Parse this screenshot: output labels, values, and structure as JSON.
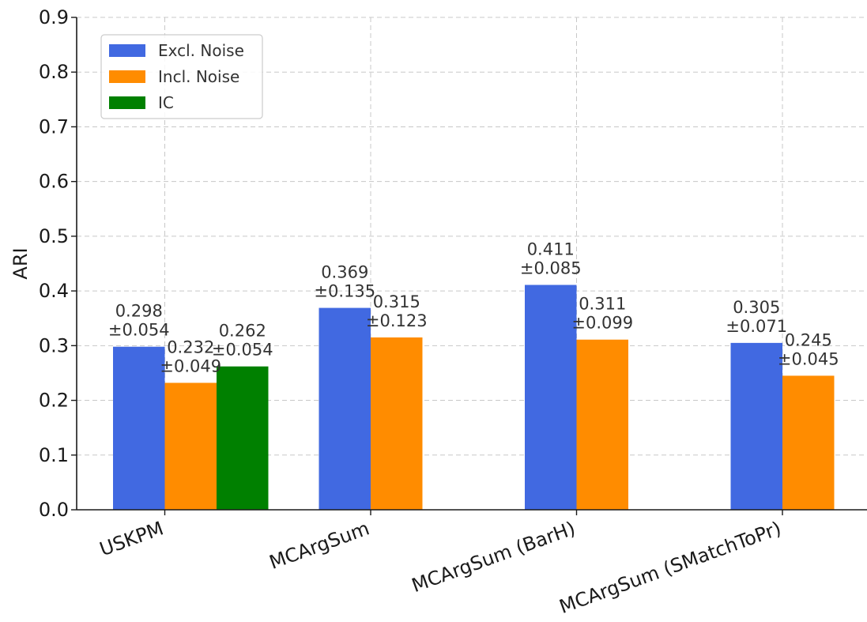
{
  "chart_data": {
    "type": "bar",
    "ylabel": "ARI",
    "xlabel": "",
    "ylim": [
      0,
      0.9
    ],
    "yticks": [
      "0.0",
      "0.1",
      "0.2",
      "0.3",
      "0.4",
      "0.5",
      "0.6",
      "0.7",
      "0.8",
      "0.9"
    ],
    "categories": [
      "USKPM",
      "MCArgSum",
      "MCArgSum (BarH)",
      "MCArgSum (SMatchToPr)"
    ],
    "grid": true,
    "legend_position": "top-left",
    "series": [
      {
        "name": "Excl. Noise",
        "color": "#4169e1",
        "values": [
          0.298,
          0.369,
          0.411,
          0.305
        ],
        "labels": [
          [
            "0.298",
            "±0.054"
          ],
          [
            "0.369",
            "±0.135"
          ],
          [
            "0.411",
            "±0.085"
          ],
          [
            "0.305",
            "±0.071"
          ]
        ]
      },
      {
        "name": "Incl. Noise",
        "color": "#ff8c00",
        "values": [
          0.232,
          0.315,
          0.311,
          0.245
        ],
        "labels": [
          [
            "0.232",
            "±0.049"
          ],
          [
            "0.315",
            "±0.123"
          ],
          [
            "0.311",
            "±0.099"
          ],
          [
            "0.245",
            "±0.045"
          ]
        ]
      },
      {
        "name": "IC",
        "color": "#008000",
        "values": [
          0.262,
          null,
          null,
          null
        ],
        "labels": [
          [
            "0.262",
            "±0.054"
          ],
          null,
          null,
          null
        ]
      }
    ]
  }
}
